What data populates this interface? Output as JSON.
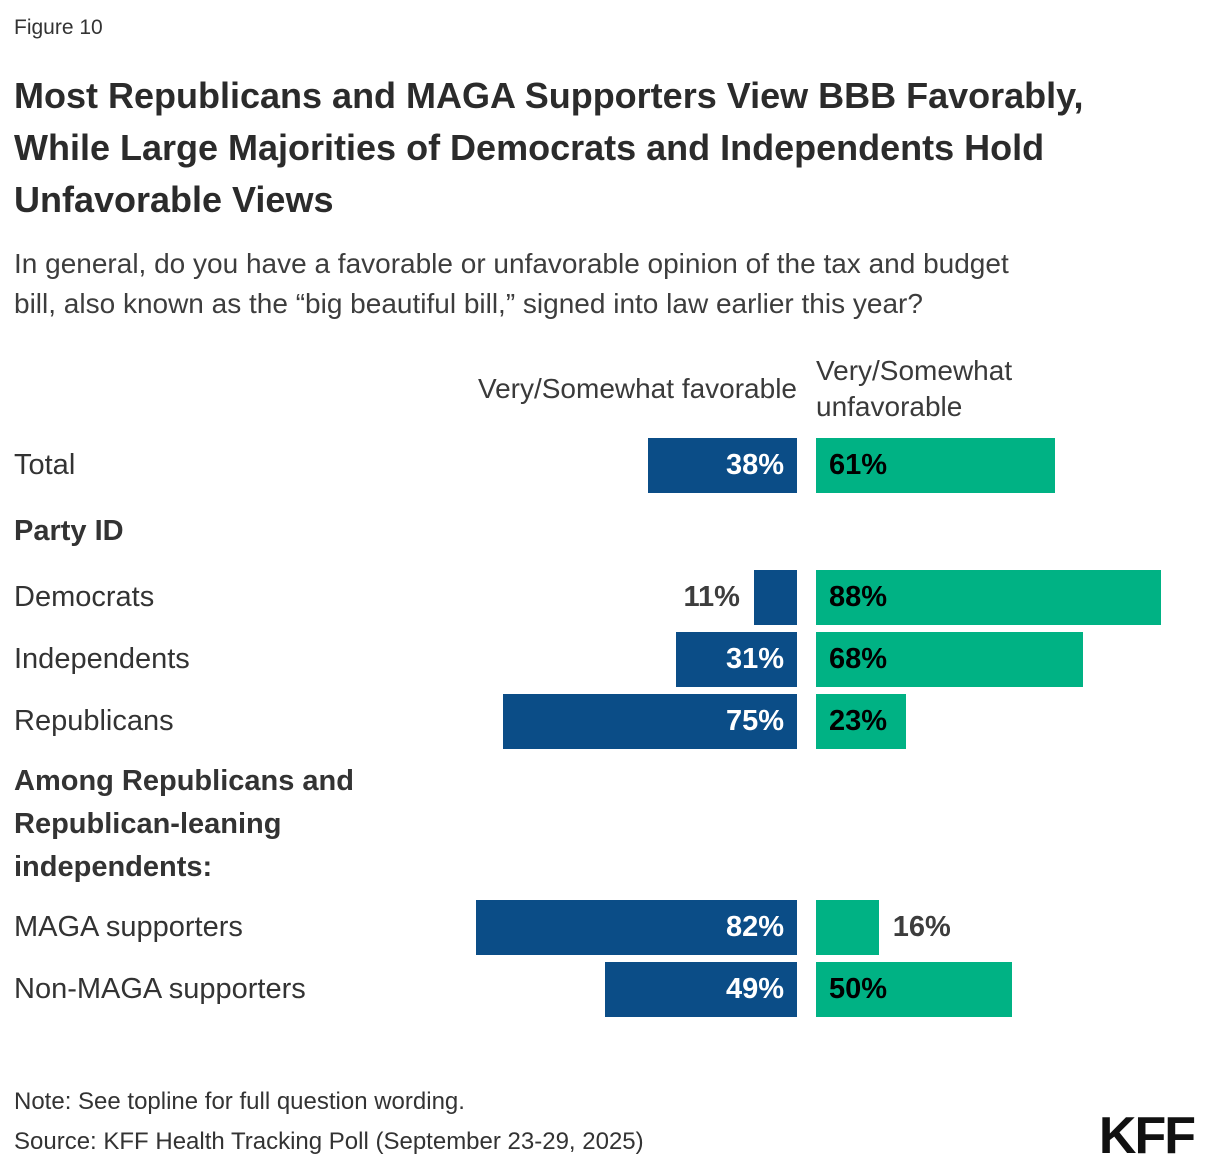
{
  "header": {
    "figure_label": "Figure 10",
    "title_lines": [
      "Most Republicans and MAGA Supporters View BBB Favorably,",
      "While Large Majorities of Democrats and Independents Hold",
      "Unfavorable Views"
    ],
    "subtitle_lines": [
      "In general, do you have a favorable or unfavorable opinion of the tax and budget",
      "bill, also known as the “big beautiful bill,” signed into law earlier this year?"
    ]
  },
  "chart_data": {
    "type": "bar",
    "variant": "horizontal-paired-diverging",
    "title": "Most Republicans and MAGA Supporters View BBB Favorably, While Large Majorities of Democrats and Independents Hold Unfavorable Views",
    "question": "In general, do you have a favorable or unfavorable opinion of the tax and budget bill, also known as the “big beautiful bill,” signed into law earlier this year?",
    "value_suffix": "%",
    "xlim": [
      0,
      100
    ],
    "grid": false,
    "legend_position": "column-headers-top",
    "series": [
      {
        "name": "Very/Somewhat favorable",
        "color": "#0b4d87",
        "label_color_inside": "#ffffff"
      },
      {
        "name": "Very/Somewhat unfavorable",
        "color": "#00b284",
        "label_color_inside": "#000000"
      }
    ],
    "rows": [
      {
        "type": "bar",
        "label": "Total",
        "favorable": 38,
        "unfavorable": 61
      },
      {
        "type": "section",
        "label": "Party ID"
      },
      {
        "type": "bar",
        "label": "Democrats",
        "favorable": 11,
        "unfavorable": 88
      },
      {
        "type": "bar",
        "label": "Independents",
        "favorable": 31,
        "unfavorable": 68
      },
      {
        "type": "bar",
        "label": "Republicans",
        "favorable": 75,
        "unfavorable": 23
      },
      {
        "type": "section",
        "label": "Among Republicans and Republican-leaning independents:"
      },
      {
        "type": "bar",
        "label": "MAGA supporters",
        "favorable": 82,
        "unfavorable": 16
      },
      {
        "type": "bar",
        "label": "Non-MAGA supporters",
        "favorable": 49,
        "unfavorable": 50
      }
    ]
  },
  "footer": {
    "note": "Note: See topline for full question wording.",
    "source": "Source: KFF Health Tracking Poll (September 23-29, 2025)",
    "logo": "KFF"
  },
  "colors": {
    "favorable_bar": "#0b4d87",
    "unfavorable_bar": "#00b284",
    "outside_value_label": "#3d3d3d",
    "body_text": "#333333"
  }
}
